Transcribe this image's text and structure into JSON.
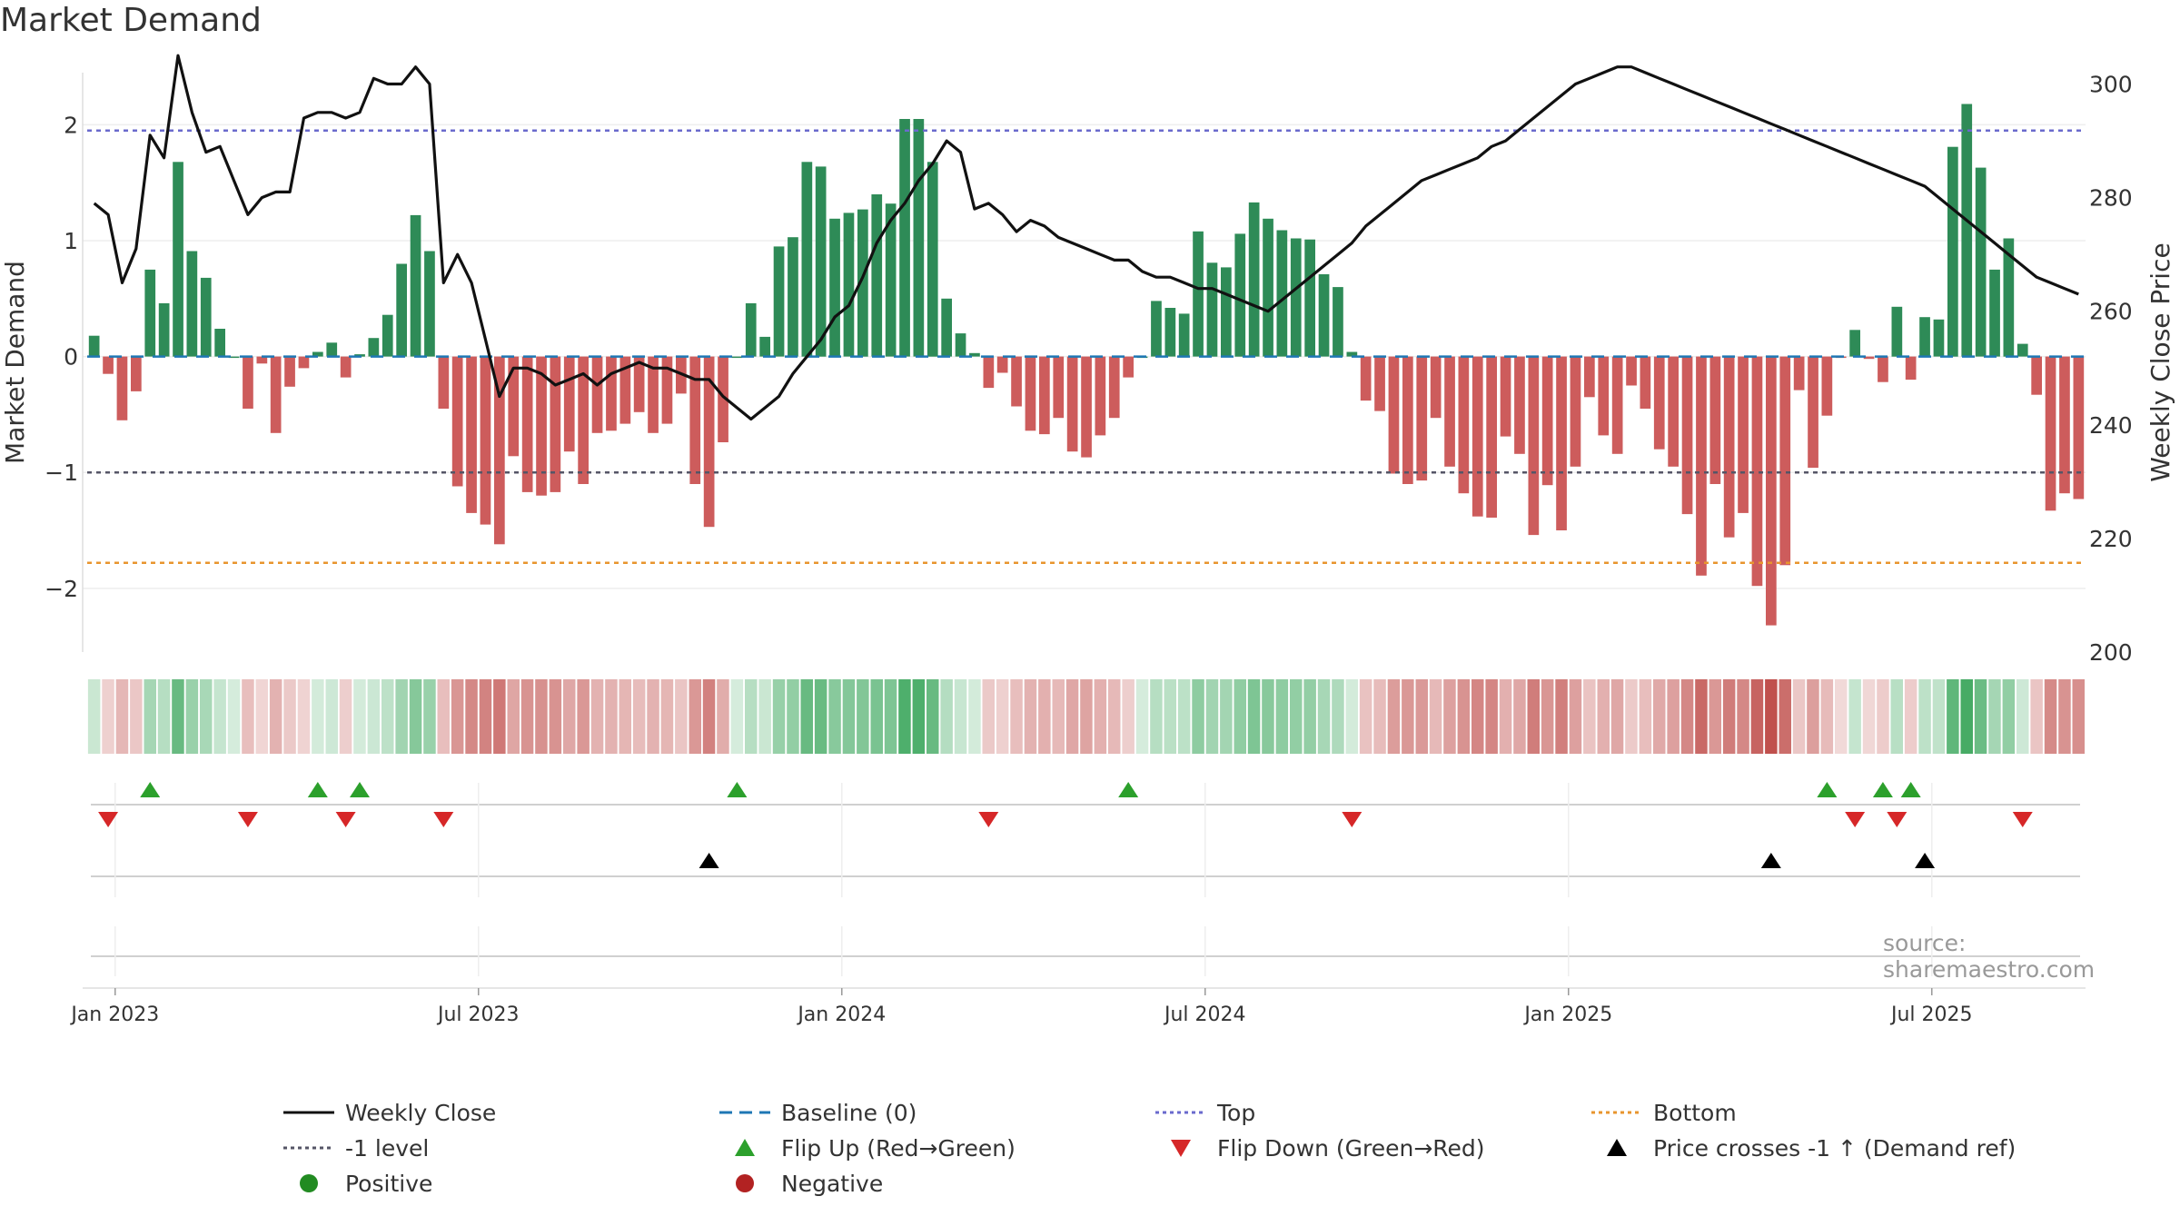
{
  "title": "Market Demand",
  "source": "source: sharemaestro.com",
  "chart_data": {
    "type": "bar+line",
    "ylabel": "Market Demand",
    "y2label": "Weekly Close Price",
    "ylim": [
      -2.55,
      2.45
    ],
    "y_ticks": [
      2,
      1,
      0,
      -1,
      -2
    ],
    "y_tick_labels": [
      "2",
      "1",
      "0",
      "−1",
      "−2"
    ],
    "y2lim": [
      200,
      302
    ],
    "y2_ticks": [
      300,
      280,
      260,
      240,
      220,
      200
    ],
    "x_tick_labels": [
      "Jan 2023",
      "Jul 2023",
      "Jan 2024",
      "Jul 2024",
      "Jan 2025",
      "Jul 2025"
    ],
    "x_tick_weeks": [
      1.5,
      27.5,
      53.5,
      79.5,
      105.5,
      131.5
    ],
    "reference_lines": {
      "top": 1.95,
      "minus_one": -1.0,
      "bottom": -1.78,
      "baseline": 0
    },
    "colors": {
      "positive": "#2e8b57",
      "negative": "#cd5c5c",
      "price": "#111111",
      "top": "#6a6acd",
      "minus_one": "#555566",
      "bottom": "#e8952e",
      "baseline": "#1f77b4",
      "flip_up": "#2ca02c",
      "flip_down": "#d62728",
      "cross": "#000000"
    },
    "demand": [
      0.18,
      -0.15,
      -0.55,
      -0.3,
      0.75,
      0.46,
      1.68,
      0.91,
      0.68,
      0.24,
      0.0,
      -0.45,
      -0.06,
      -0.66,
      -0.26,
      -0.1,
      0.04,
      0.12,
      -0.18,
      0.02,
      0.16,
      0.36,
      0.8,
      1.22,
      0.91,
      -0.45,
      -1.12,
      -1.35,
      -1.45,
      -1.62,
      -0.86,
      -1.17,
      -1.2,
      -1.17,
      -0.82,
      -1.1,
      -0.66,
      -0.64,
      -0.58,
      -0.48,
      -0.66,
      -0.58,
      -0.32,
      -1.1,
      -1.47,
      -0.74,
      0.0,
      0.46,
      0.17,
      0.95,
      1.03,
      1.68,
      1.64,
      1.19,
      1.24,
      1.27,
      1.4,
      1.32,
      2.05,
      2.05,
      1.68,
      0.5,
      0.2,
      0.03,
      -0.27,
      -0.14,
      -0.43,
      -0.64,
      -0.67,
      -0.53,
      -0.82,
      -0.87,
      -0.68,
      -0.53,
      -0.18,
      0.0,
      0.48,
      0.42,
      0.37,
      1.08,
      0.81,
      0.77,
      1.06,
      1.33,
      1.19,
      1.09,
      1.02,
      1.01,
      0.71,
      0.6,
      0.04,
      -0.38,
      -0.47,
      -1.01,
      -1.1,
      -1.07,
      -0.53,
      -0.95,
      -1.18,
      -1.38,
      -1.39,
      -0.69,
      -0.84,
      -1.54,
      -1.11,
      -1.5,
      -0.95,
      -0.35,
      -0.68,
      -0.84,
      -0.25,
      -0.45,
      -0.8,
      -0.95,
      -1.36,
      -1.89,
      -1.1,
      -1.56,
      -1.35,
      -1.98,
      -2.32,
      -1.8,
      -0.29,
      -0.96,
      -0.51,
      -0.01,
      0.23,
      -0.02,
      -0.22,
      0.43,
      -0.2,
      0.34,
      0.32,
      1.81,
      2.18,
      1.63,
      0.75,
      1.02,
      0.11,
      -0.33,
      -1.33,
      -1.18,
      -1.23
    ],
    "price": [
      279,
      277,
      265,
      271,
      291,
      287,
      305,
      295,
      288,
      289,
      283,
      277,
      280,
      281,
      281,
      294,
      295,
      295,
      294,
      295,
      301,
      300,
      300,
      303,
      300,
      265,
      270,
      265,
      255,
      245,
      250,
      250,
      249,
      247,
      248,
      249,
      247,
      249,
      250,
      251,
      250,
      250,
      249,
      248,
      248,
      245,
      243,
      241,
      243,
      245,
      249,
      252,
      255,
      259,
      261,
      266,
      272,
      276,
      279,
      283,
      286,
      290,
      288,
      278,
      279,
      277,
      274,
      276,
      275,
      273,
      272,
      271,
      270,
      269,
      269,
      267,
      266,
      266,
      265,
      264,
      264,
      263,
      262,
      261,
      260,
      262,
      264,
      266,
      268,
      270,
      272,
      275,
      277,
      279,
      281,
      283,
      284,
      285,
      286,
      287,
      289,
      290,
      292,
      294,
      296,
      298,
      300,
      301,
      302,
      303,
      303,
      302,
      301,
      300,
      299,
      298,
      297,
      296,
      295,
      294,
      293,
      292,
      291,
      290,
      289,
      288,
      287,
      286,
      285,
      284,
      283,
      282,
      280,
      278,
      276,
      274,
      272,
      270,
      268,
      266,
      265,
      264,
      263
    ],
    "flip_up_weeks": [
      4,
      16,
      19,
      46,
      74,
      124,
      128,
      130
    ],
    "flip_down_weeks": [
      1,
      11,
      18,
      25,
      64,
      90,
      126,
      129,
      138
    ],
    "cross_weeks": [
      44,
      120,
      131
    ]
  },
  "legend": [
    {
      "label": "Weekly Close",
      "symbol": "solid-line"
    },
    {
      "label": "Baseline (0)",
      "symbol": "dashed-line"
    },
    {
      "label": "Top",
      "symbol": "dotted-line"
    },
    {
      "label": "Bottom",
      "symbol": "dotted-line"
    },
    {
      "label": "-1 level",
      "symbol": "dotted-line"
    },
    {
      "label": "Flip Up (Red→Green)",
      "symbol": "triangle-up"
    },
    {
      "label": "Flip Down (Green→Red)",
      "symbol": "triangle-down"
    },
    {
      "label": "Price crosses -1 ↑ (Demand ref)",
      "symbol": "triangle-up"
    },
    {
      "label": "Positive",
      "symbol": "circle"
    },
    {
      "label": "Negative",
      "symbol": "circle"
    }
  ]
}
